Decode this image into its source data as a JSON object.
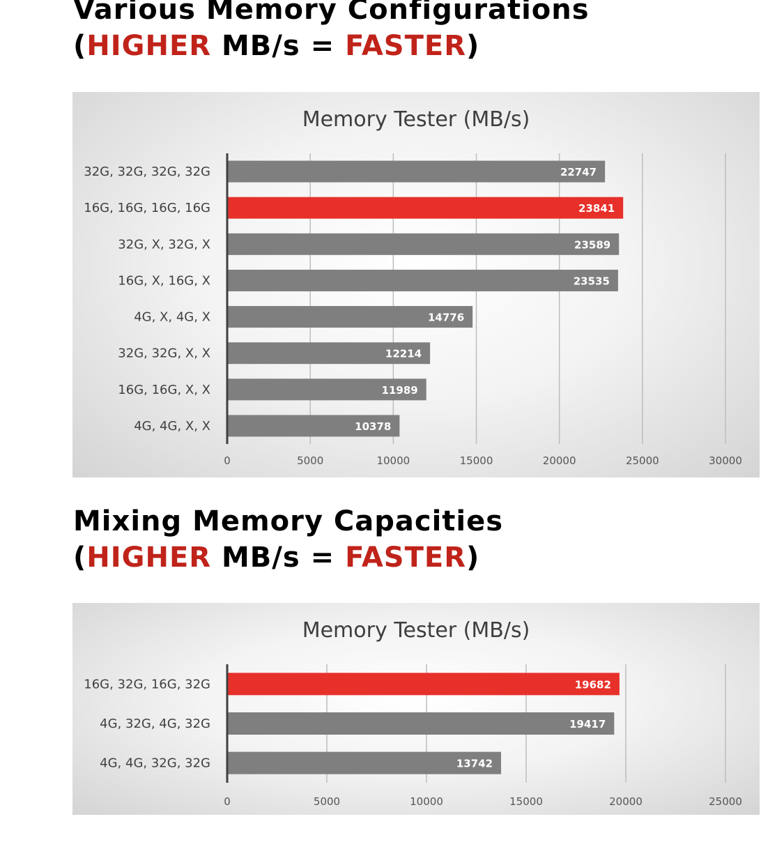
{
  "headings": [
    {
      "line1": "Various Memory Configurations",
      "open": "(",
      "higher": "HIGHER",
      "middle": " MB/s = ",
      "faster": "FASTER",
      "close": ")"
    },
    {
      "line1": "Mixing Memory Capacities",
      "open": "(",
      "higher": "HIGHER",
      "middle": " MB/s = ",
      "faster": "FASTER",
      "close": ")"
    }
  ],
  "colors": {
    "highlight": "#e8302a",
    "bar": "#7f7f7f",
    "heading_accent": "#c0231a",
    "axis": "#404040",
    "grid": "#bdbdbd"
  },
  "chart_data": [
    {
      "type": "bar",
      "orientation": "horizontal",
      "title": "Memory Tester (MB/s)",
      "categories": [
        "32G, 32G, 32G, 32G",
        "16G, 16G, 16G, 16G",
        "32G, X, 32G, X",
        "16G, X, 16G, X",
        "4G, X, 4G, X",
        "32G, 32G, X, X",
        "16G, 16G, X, X",
        "4G, 4G, X, X"
      ],
      "values": [
        22747,
        23841,
        23589,
        23535,
        14776,
        12214,
        11989,
        10378
      ],
      "highlight_index": 1,
      "xlim": [
        0,
        30000
      ],
      "ticks": [
        0,
        5000,
        10000,
        15000,
        20000,
        25000,
        30000
      ],
      "grid": true
    },
    {
      "type": "bar",
      "orientation": "horizontal",
      "title": "Memory Tester (MB/s)",
      "categories": [
        "16G, 32G, 16G, 32G",
        "4G, 32G, 4G, 32G",
        "4G, 4G, 32G, 32G"
      ],
      "values": [
        19682,
        19417,
        13742
      ],
      "highlight_index": 0,
      "xlim": [
        0,
        25000
      ],
      "ticks": [
        0,
        5000,
        10000,
        15000,
        20000,
        25000
      ],
      "grid": true
    }
  ]
}
